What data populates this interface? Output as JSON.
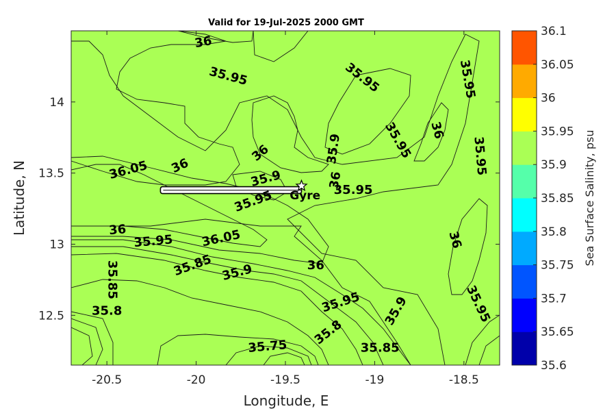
{
  "chart_data": {
    "type": "heatmap",
    "title": "Valid for 19-Jul-2025 2000 GMT",
    "xlabel": "Longitude, E",
    "ylabel": "Latitude, N",
    "xlim": [
      -20.7,
      -18.3
    ],
    "ylim": [
      12.15,
      14.5
    ],
    "xticks": [
      -20.5,
      -20,
      -19.5,
      -19,
      -18.5
    ],
    "xtick_labels": [
      "-20.5",
      "-20",
      "-19.5",
      "-19",
      "-18.5"
    ],
    "yticks": [
      12.5,
      13,
      13.5,
      14
    ],
    "ytick_labels": [
      "12.5",
      "13",
      "13.5",
      "14"
    ],
    "colorbar": {
      "label": "Sea Surface Salinity, psu",
      "levels": [
        35.6,
        35.65,
        35.7,
        35.75,
        35.8,
        35.85,
        35.9,
        35.95,
        36,
        36.05,
        36.1
      ],
      "level_labels": [
        "35.6",
        "35.65",
        "35.7",
        "35.75",
        "35.8",
        "35.85",
        "35.9",
        "35.95",
        "36",
        "36.05",
        "36.1"
      ],
      "colors": [
        "#0000aa",
        "#0000ff",
        "#0055ff",
        "#00aaff",
        "#00ffff",
        "#55ffaa",
        "#aaff55",
        "#ffff00",
        "#ffaa00",
        "#ff5500"
      ]
    },
    "contour_labels": [
      {
        "text": "36",
        "lon": -19.96,
        "lat": 14.42,
        "angle": 10
      },
      {
        "text": "35.95",
        "lon": -19.82,
        "lat": 14.18,
        "angle": -15
      },
      {
        "text": "35.95",
        "lon": -19.07,
        "lat": 14.17,
        "angle": -38
      },
      {
        "text": "35.95",
        "lon": -18.48,
        "lat": 14.16,
        "angle": -80
      },
      {
        "text": "35.9",
        "lon": -19.23,
        "lat": 13.67,
        "angle": 82
      },
      {
        "text": "36",
        "lon": -19.64,
        "lat": 13.64,
        "angle": 40
      },
      {
        "text": "35.95",
        "lon": -18.87,
        "lat": 13.73,
        "angle": -60
      },
      {
        "text": "36",
        "lon": -18.65,
        "lat": 13.8,
        "angle": -75
      },
      {
        "text": "35.95",
        "lon": -18.41,
        "lat": 13.62,
        "angle": -85
      },
      {
        "text": "36",
        "lon": -20.09,
        "lat": 13.55,
        "angle": 25
      },
      {
        "text": "36.05",
        "lon": -20.38,
        "lat": 13.52,
        "angle": 15
      },
      {
        "text": "35.9",
        "lon": -19.61,
        "lat": 13.46,
        "angle": 15
      },
      {
        "text": "36",
        "lon": -19.22,
        "lat": 13.45,
        "angle": 80
      },
      {
        "text": "35.95",
        "lon": -19.12,
        "lat": 13.38,
        "angle": 0
      },
      {
        "text": "35.95",
        "lon": -19.68,
        "lat": 13.3,
        "angle": 20
      },
      {
        "text": "36",
        "lon": -20.44,
        "lat": 13.1,
        "angle": 5
      },
      {
        "text": "35.95",
        "lon": -20.24,
        "lat": 13.02,
        "angle": 5
      },
      {
        "text": "36.05",
        "lon": -19.86,
        "lat": 13.04,
        "angle": 12
      },
      {
        "text": "36",
        "lon": -18.55,
        "lat": 13.03,
        "angle": -75
      },
      {
        "text": "35.85",
        "lon": -20.47,
        "lat": 12.75,
        "angle": -90
      },
      {
        "text": "35.85",
        "lon": -20.02,
        "lat": 12.85,
        "angle": 20
      },
      {
        "text": "35.9",
        "lon": -19.77,
        "lat": 12.8,
        "angle": 15
      },
      {
        "text": "36",
        "lon": -19.33,
        "lat": 12.85,
        "angle": 0
      },
      {
        "text": "35.8",
        "lon": -20.5,
        "lat": 12.53,
        "angle": 0
      },
      {
        "text": "35.95",
        "lon": -19.19,
        "lat": 12.59,
        "angle": 18
      },
      {
        "text": "35.9",
        "lon": -18.88,
        "lat": 12.53,
        "angle": 60
      },
      {
        "text": "35.95",
        "lon": -18.42,
        "lat": 12.58,
        "angle": -65
      },
      {
        "text": "35.8",
        "lon": -19.26,
        "lat": 12.38,
        "angle": 38
      },
      {
        "text": "35.75",
        "lon": -19.6,
        "lat": 12.28,
        "angle": 5
      },
      {
        "text": "35.85",
        "lon": -18.97,
        "lat": 12.27,
        "angle": 0
      }
    ],
    "annotations": [
      {
        "text": "Gyre",
        "lon": -19.39,
        "lat": 13.34
      }
    ],
    "markers": [
      {
        "type": "star",
        "lon": -19.41,
        "lat": 13.41
      }
    ],
    "track": {
      "lon_start": -20.2,
      "lon_end": -19.41,
      "lat": 13.38
    }
  }
}
